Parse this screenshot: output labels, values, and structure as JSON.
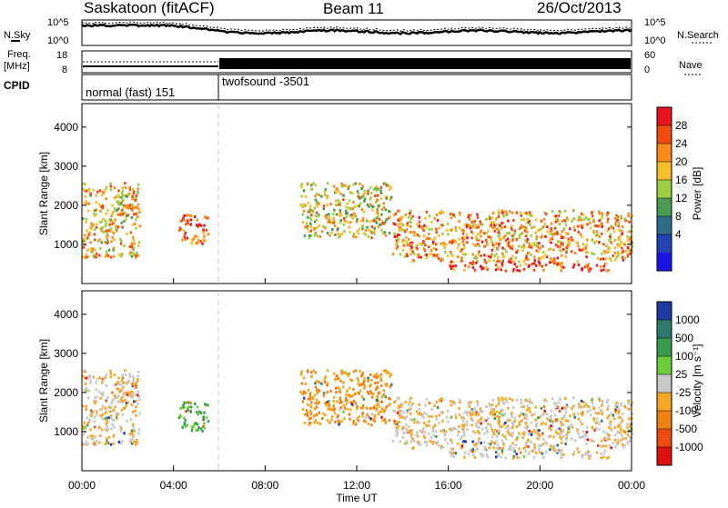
{
  "header": {
    "station": "Saskatoon (fitACF)",
    "beam": "Beam 11",
    "date": "26/Oct/2013"
  },
  "noise_panel": {
    "left_label": "N.Sky",
    "right_label": "N.Search",
    "left_ticks": [
      "10^5",
      "10^0"
    ],
    "right_ticks": [
      "10^5",
      "10^0"
    ]
  },
  "freq_panel": {
    "left_label_line1": "Freq.",
    "left_label_line2": "[MHz]",
    "right_label": "Nave",
    "left_ticks": [
      "18",
      "8"
    ],
    "right_ticks": [
      "60",
      "0"
    ]
  },
  "cpid_panel": {
    "label": "CPID",
    "modes": [
      {
        "name": "normal (fast) 151",
        "start": "00:00",
        "end": "06:00"
      },
      {
        "name": "twofsound -3501",
        "start": "06:00",
        "end": "00:00"
      }
    ]
  },
  "power_panel": {
    "ylabel": "Slant Range [km]",
    "colorbar_label": "Power [dB]",
    "colorbar_ticks": [
      "28",
      "24",
      "20",
      "16",
      "12",
      "8",
      "4"
    ],
    "colors": [
      "#e8141e",
      "#f24a10",
      "#f78a19",
      "#f5be2a",
      "#9ccd42",
      "#4b9a52",
      "#2f6e8a",
      "#2243b6",
      "#1a14e6"
    ]
  },
  "velocity_panel": {
    "ylabel": "Velocity [m s⁻¹]",
    "ylabel_range": "Slant Range [km]",
    "colorbar_ticks": [
      "1000",
      "500",
      "100",
      "25",
      "-25",
      "-100",
      "-500",
      "-1000"
    ],
    "colors": [
      "#1e3ca0",
      "#2e7a6e",
      "#3a9a4c",
      "#6ccc3a",
      "#c8c8c8",
      "#f5a623",
      "#f08010",
      "#f04a10",
      "#e01010"
    ]
  },
  "x_axis": {
    "label": "Time UT",
    "ticks": [
      "00:00",
      "04:00",
      "08:00",
      "12:00",
      "16:00",
      "20:00",
      "00:00"
    ]
  },
  "chart_data": {
    "type": "heatmap",
    "title": "Saskatoon (fitACF) Beam 11 26/Oct/2013",
    "xlabel": "Time UT",
    "ylabel": "Slant Range [km]",
    "xlim": [
      "00:00",
      "24:00"
    ],
    "ylim": [
      0,
      4600
    ],
    "y_ticks": [
      1000,
      2000,
      3000,
      4000
    ],
    "panels": [
      {
        "name": "Power",
        "units": "dB",
        "colorbar_range": [
          0,
          30
        ],
        "colorbar_ticks": [
          4,
          8,
          12,
          16,
          20,
          24,
          28
        ]
      },
      {
        "name": "Velocity",
        "units": "m s-1",
        "colorbar_range": [
          -1000,
          1000
        ],
        "colorbar_ticks": [
          1000,
          500,
          100,
          25,
          -25,
          -100,
          -500,
          -1000
        ]
      }
    ],
    "dominant_regions": [
      {
        "time_start_h": 0.0,
        "time_end_h": 2.5,
        "range_start_km": 700,
        "range_end_km": 2600,
        "power_db": 20,
        "velocity": -25
      },
      {
        "time_start_h": 4.2,
        "time_end_h": 5.5,
        "range_start_km": 1000,
        "range_end_km": 1800,
        "power_db": 26,
        "velocity": 100
      },
      {
        "time_start_h": 9.5,
        "time_end_h": 13.5,
        "range_start_km": 1200,
        "range_end_km": 2600,
        "power_db": 18,
        "velocity": -100
      },
      {
        "time_start_h": 13.5,
        "time_end_h": 24.0,
        "range_start_km": 600,
        "range_end_km": 1900,
        "power_db": 22,
        "velocity": -25
      },
      {
        "time_start_h": 16.0,
        "time_end_h": 23.0,
        "range_start_km": 350,
        "range_end_km": 600,
        "power_db": 26,
        "velocity": -25
      }
    ]
  }
}
